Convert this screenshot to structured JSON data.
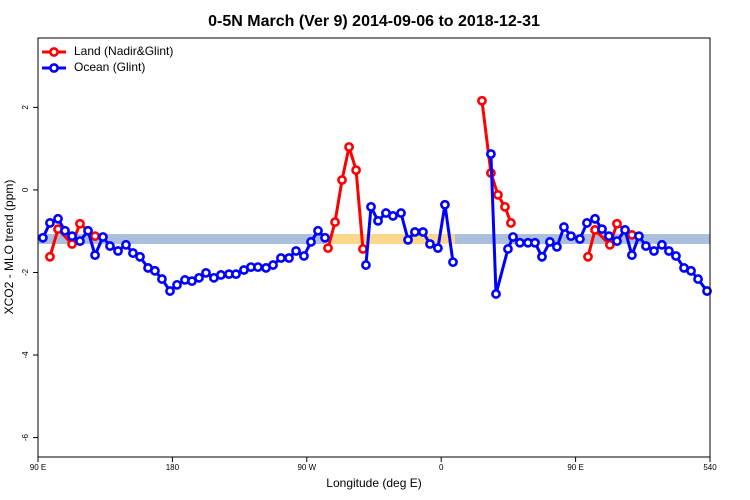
{
  "chart_data": {
    "type": "line",
    "title": "0-5N March (Ver 9)   2014-09-06 to 2018-12-31",
    "x_label": "Longitude (deg E)",
    "y_label": "XCO2 - MLO trend (ppm)",
    "xlim": [
      90,
      540
    ],
    "ylim": [
      -6.47,
      3.68
    ],
    "xticks": [
      {
        "value": 90,
        "label": "90 E"
      },
      180,
      {
        "value": 270,
        "label": "90 W"
      },
      {
        "value": 360,
        "label": "0"
      },
      {
        "value": 450,
        "label": "90 E"
      },
      540
    ],
    "yticks": [
      -6,
      -4,
      -2,
      0,
      2
    ],
    "legend": "top-left",
    "bands": [
      {
        "xlim": [
          90,
          540
        ],
        "ylim": [
          -1.31,
          -1.07
        ],
        "color": "#a9bfdc"
      },
      {
        "xlim": [
          282.2,
          369.2
        ],
        "ylim": [
          -1.31,
          -1.07
        ],
        "color": "#fcd98a"
      }
    ],
    "series": [
      {
        "name": "Land (Nadir&Glint)",
        "color": "#ff0000",
        "x": [
          98.0,
          103.4,
          112.8,
          118.1,
          128.2,
          null,
          284.2,
          288.9,
          293.6,
          298.3,
          303.0,
          307.6,
          null,
          387.3,
          393.3,
          398.0,
          402.7,
          406.7,
          null,
          458.3,
          463.0,
          473.0,
          477.7,
          487.7
        ],
        "values": [
          -1.62,
          -0.95,
          -1.31,
          -0.82,
          -1.12,
          null,
          -1.41,
          -0.78,
          0.24,
          1.04,
          0.48,
          -1.43,
          null,
          2.16,
          0.41,
          -0.12,
          -0.41,
          -0.8,
          null,
          -1.62,
          -0.97,
          -1.33,
          -0.82,
          -1.09
        ]
      },
      {
        "name": "Ocean (Glint)",
        "color": "#0000ff",
        "x": [
          93.3,
          98.0,
          103.4,
          108.1,
          112.8,
          118.1,
          123.5,
          128.2,
          133.5,
          138.2,
          143.6,
          148.9,
          153.6,
          158.3,
          163.7,
          168.3,
          173.0,
          178.4,
          183.1,
          188.4,
          193.1,
          197.8,
          202.5,
          207.8,
          212.5,
          217.9,
          222.6,
          227.9,
          232.6,
          237.3,
          242.7,
          247.4,
          252.7,
          258.1,
          262.8,
          268.1,
          272.8,
          277.5,
          282.2,
          null,
          309.6,
          313.0,
          317.7,
          323.0,
          327.7,
          333.1,
          337.8,
          342.4,
          347.8,
          352.5,
          357.8,
          362.5,
          367.9,
          null,
          393.3,
          396.7,
          404.7,
          408.1,
          412.7,
          418.1,
          422.8,
          427.5,
          432.8,
          437.5,
          442.2,
          446.9,
          452.9,
          457.6,
          463.0,
          467.7,
          472.3,
          477.7,
          483.1,
          487.7,
          492.4,
          497.1,
          502.5,
          507.8,
          512.5,
          517.2,
          522.6,
          527.3,
          532.0,
          538.0
        ],
        "values": [
          -1.16,
          -0.8,
          -0.7,
          -0.99,
          -1.12,
          -1.24,
          -0.99,
          -1.58,
          -1.14,
          -1.36,
          -1.48,
          -1.33,
          -1.53,
          -1.62,
          -1.89,
          -1.96,
          -2.16,
          -2.45,
          -2.3,
          -2.18,
          -2.21,
          -2.13,
          -2.01,
          -2.13,
          -2.06,
          -2.04,
          -2.04,
          -1.94,
          -1.87,
          -1.87,
          -1.89,
          -1.82,
          -1.65,
          -1.65,
          -1.48,
          -1.6,
          -1.26,
          -0.99,
          -1.16,
          null,
          -1.82,
          -0.41,
          -0.75,
          -0.56,
          -0.63,
          -0.56,
          -1.21,
          -1.02,
          -1.02,
          -1.31,
          -1.41,
          -0.36,
          -1.75,
          null,
          0.87,
          -2.52,
          -1.43,
          -1.14,
          -1.28,
          -1.28,
          -1.28,
          -1.62,
          -1.26,
          -1.38,
          -0.9,
          -1.12,
          -1.19,
          -0.8,
          -0.7,
          -0.95,
          -1.12,
          -1.24,
          -0.97,
          -1.58,
          -1.12,
          -1.36,
          -1.48,
          -1.33,
          -1.48,
          -1.6,
          -1.89,
          -1.96,
          -2.16,
          -2.45
        ]
      }
    ]
  }
}
